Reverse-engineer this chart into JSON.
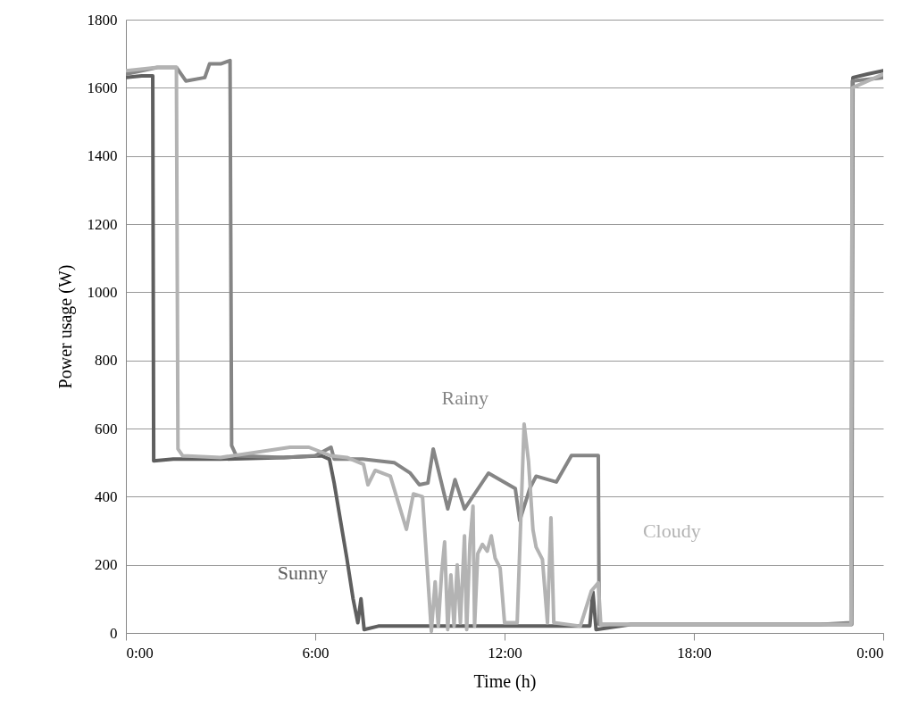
{
  "chart_data": {
    "type": "line",
    "xlabel": "Time (h)",
    "ylabel": "Power usage (W)",
    "xlim": [
      0,
      24
    ],
    "xticks": [
      {
        "value": 0,
        "label": "0:00"
      },
      {
        "value": 6,
        "label": "6:00"
      },
      {
        "value": 12,
        "label": "12:00"
      },
      {
        "value": 18,
        "label": "18:00"
      },
      {
        "value": 24,
        "label": "0:00"
      }
    ],
    "ylim": [
      0,
      1800
    ],
    "yticks": [
      0,
      200,
      400,
      600,
      800,
      1000,
      1200,
      1400,
      1600,
      1800
    ],
    "grid": "y",
    "legend": false,
    "marker": "none",
    "line_style": "solid",
    "series": [
      {
        "name": "Sunny",
        "color": "#5f5f5f",
        "x": [
          0,
          0.5,
          0.85,
          0.88,
          1.5,
          3,
          5,
          6.2,
          6.45,
          6.6,
          6.8,
          7.0,
          7.2,
          7.35,
          7.45,
          7.55,
          8,
          10,
          12,
          14,
          14.7,
          14.8,
          14.9,
          16,
          18,
          20,
          22,
          23.0,
          23.04,
          23.5,
          24
        ],
        "values": [
          1630,
          1635,
          1635,
          505,
          510,
          510,
          515,
          520,
          510,
          440,
          330,
          220,
          100,
          30,
          100,
          10,
          20,
          20,
          20,
          20,
          20,
          120,
          10,
          25,
          25,
          25,
          25,
          25,
          1630,
          1640,
          1650
        ]
      },
      {
        "name": "Rainy",
        "color": "#858585",
        "x": [
          0,
          1.0,
          1.6,
          1.9,
          2.5,
          2.65,
          3.0,
          3.3,
          3.35,
          3.5,
          5,
          6.0,
          6.5,
          6.6,
          7.5,
          8.5,
          9.0,
          9.3,
          9.57,
          9.74,
          10.2,
          10.43,
          10.73,
          11.49,
          12.34,
          12.48,
          12.8,
          13.0,
          13.64,
          14.12,
          14.97,
          15.0,
          16,
          18,
          20,
          22,
          22.98,
          23.02,
          24
        ],
        "values": [
          1640,
          1660,
          1660,
          1620,
          1630,
          1670,
          1670,
          1680,
          550,
          520,
          515,
          520,
          545,
          510,
          510,
          500,
          470,
          435,
          440,
          540,
          364,
          450,
          364,
          469,
          424,
          330,
          424,
          460,
          443,
          521,
          521,
          25,
          25,
          25,
          25,
          25,
          30,
          1620,
          1630
        ]
      },
      {
        "name": "Cloudy",
        "color": "#b3b3b3",
        "x": [
          0,
          1.0,
          1.6,
          1.65,
          1.8,
          3,
          5.2,
          5.8,
          6.5,
          7.0,
          7.53,
          7.67,
          7.9,
          8.38,
          8.89,
          9.11,
          9.4,
          9.68,
          9.8,
          9.9,
          10.0,
          10.1,
          10.2,
          10.3,
          10.4,
          10.5,
          10.6,
          10.73,
          10.8,
          10.9,
          11.0,
          11.05,
          11.15,
          11.3,
          11.45,
          11.58,
          11.7,
          11.86,
          12.0,
          12.4,
          12.62,
          12.76,
          12.9,
          13.0,
          13.2,
          13.36,
          13.47,
          13.56,
          14.4,
          14.75,
          14.97,
          15.05,
          16,
          18,
          20,
          22,
          22.98,
          23.02,
          24
        ],
        "values": [
          1650,
          1660,
          1660,
          540,
          520,
          515,
          545,
          545,
          520,
          515,
          495,
          435,
          477,
          460,
          304,
          408,
          400,
          5,
          150,
          20,
          170,
          267,
          10,
          170,
          20,
          200,
          30,
          285,
          10,
          260,
          372,
          20,
          233,
          260,
          240,
          285,
          220,
          190,
          30,
          30,
          613,
          503,
          303,
          252,
          216,
          30,
          338,
          30,
          20,
          123,
          147,
          25,
          25,
          25,
          25,
          25,
          25,
          1600,
          1640
        ]
      }
    ]
  }
}
